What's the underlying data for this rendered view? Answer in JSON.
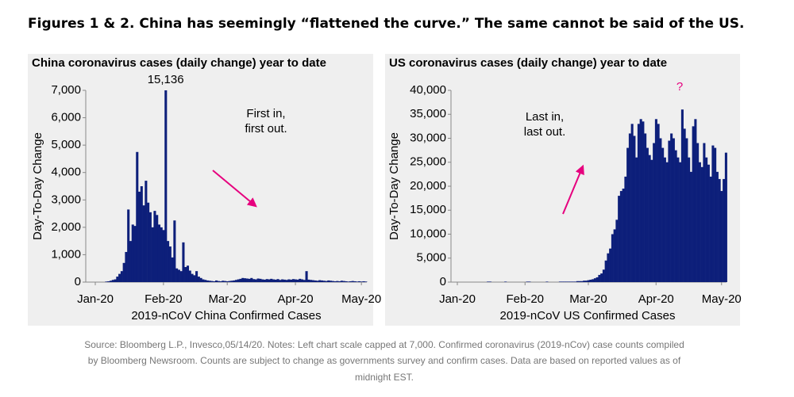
{
  "title": "Figures 1 & 2. China has seemingly “flattened the curve.” The same cannot be said of the US.",
  "source": [
    "Source: Bloomberg L.P., Invesco,05/14/20. Notes: Left chart scale capped at 7,000. Confirmed coronavirus (2019-nCov) case counts compiled",
    "by Bloomberg Newsroom. Counts are subject to change as governments survey and confirm cases. Data are based on reported values as of",
    "midnight EST."
  ],
  "chart_data": [
    {
      "type": "bar",
      "title": "China coronavirus cases (daily change) year to date",
      "y_label": "Day-To-Day Change",
      "x_label": "2019-nCoV China Confirmed Cases",
      "color": "#0d1f7a",
      "annotations": [
        {
          "lines": [
            "First in,",
            "first out."
          ]
        }
      ],
      "categories": [
        "Jan-20",
        null,
        null,
        null,
        null,
        null,
        null,
        null,
        null,
        null,
        null,
        null,
        null,
        null,
        null,
        null,
        null,
        null,
        null,
        null,
        null,
        null,
        null,
        null,
        null,
        null,
        null,
        null,
        null,
        null,
        null,
        "Feb-20",
        null,
        null,
        null,
        null,
        null,
        null,
        null,
        null,
        null,
        null,
        null,
        null,
        null,
        null,
        null,
        null,
        null,
        null,
        null,
        null,
        null,
        null,
        null,
        null,
        null,
        null,
        null,
        null,
        "Mar-20",
        null,
        null,
        null,
        null,
        null,
        null,
        null,
        null,
        null,
        null,
        null,
        null,
        null,
        null,
        null,
        null,
        null,
        null,
        null,
        null,
        null,
        null,
        null,
        null,
        null,
        null,
        null,
        null,
        null,
        null,
        "Apr-20",
        null,
        null,
        null,
        null,
        null,
        null,
        null,
        null,
        null,
        null,
        null,
        null,
        null,
        null,
        null,
        null,
        null,
        null,
        null,
        null,
        null,
        null,
        null,
        null,
        null,
        null,
        null,
        null,
        null,
        "May-20",
        null,
        null
      ],
      "values": [
        0,
        0,
        0,
        0,
        0,
        20,
        30,
        50,
        80,
        100,
        200,
        300,
        400,
        700,
        1100,
        2650,
        1500,
        2100,
        2050,
        4750,
        3300,
        3500,
        2800,
        3700,
        2900,
        2550,
        2000,
        2600,
        2450,
        2100,
        2000,
        1900,
        15136,
        1500,
        1300,
        900,
        2250,
        500,
        450,
        400,
        1450,
        550,
        600,
        420,
        300,
        250,
        400,
        200,
        150,
        100,
        80,
        60,
        50,
        40,
        30,
        60,
        40,
        30,
        50,
        40,
        30,
        40,
        50,
        60,
        80,
        100,
        120,
        150,
        140,
        130,
        120,
        150,
        110,
        100,
        130,
        120,
        100,
        90,
        110,
        100,
        120,
        100,
        90,
        110,
        80,
        100,
        90,
        80,
        100,
        90,
        110,
        100,
        90,
        120,
        100,
        80,
        400,
        90,
        80,
        70,
        60,
        50,
        70,
        60,
        50,
        40,
        60,
        50,
        40,
        30,
        40,
        30,
        50,
        40,
        30,
        20,
        30,
        40,
        30,
        20,
        30,
        20,
        30,
        20
      ],
      "value_labels": [
        null,
        null,
        null,
        null,
        null,
        null,
        null,
        null,
        null,
        null,
        null,
        null,
        null,
        null,
        null,
        null,
        null,
        null,
        null,
        null,
        null,
        null,
        null,
        null,
        null,
        null,
        null,
        null,
        null,
        null,
        null,
        null,
        "15,136",
        null,
        null,
        null,
        null,
        null,
        null,
        null,
        null,
        null,
        null,
        null,
        null,
        null,
        null,
        null,
        null,
        null,
        null,
        null,
        null,
        null,
        null,
        null,
        null,
        null,
        null,
        null,
        null,
        null,
        null,
        null,
        null,
        null,
        null,
        null,
        null,
        null,
        null,
        null,
        null,
        null,
        null,
        null,
        null,
        null,
        null,
        null,
        null,
        null,
        null,
        null,
        null,
        null,
        null,
        null,
        null,
        null,
        null,
        null,
        null,
        null,
        null,
        null,
        null,
        null,
        null,
        null,
        null,
        null,
        null,
        null,
        null,
        null,
        null,
        null,
        null,
        null,
        null,
        null,
        null,
        null,
        null,
        null,
        null,
        null,
        null,
        null,
        null,
        null,
        null,
        null
      ],
      "ylim": [
        0,
        7000
      ],
      "yticks": [
        0,
        {
          "value": 1000,
          "label": "1,000"
        },
        {
          "value": 2000,
          "label": "2,000"
        },
        {
          "value": 3000,
          "label": "3,000"
        },
        {
          "value": 4000,
          "label": "4,000"
        },
        {
          "value": 5000,
          "label": "5,000"
        },
        {
          "value": 6000,
          "label": "6,000"
        },
        {
          "value": 7000,
          "label": "7,000"
        }
      ]
    },
    {
      "type": "bar",
      "title": "US coronavirus cases (daily change) year to date",
      "y_label": "Day-To-Day Change",
      "x_label": "2019-nCoV US Confirmed Cases",
      "color": "#0d1f7a",
      "annotations": [
        {
          "lines": [
            "Last in,",
            "last out."
          ]
        },
        {
          "lines": [
            "?"
          ]
        }
      ],
      "categories": [
        "Jan-20",
        null,
        null,
        null,
        null,
        null,
        null,
        null,
        null,
        null,
        null,
        null,
        null,
        null,
        null,
        null,
        null,
        null,
        null,
        null,
        null,
        null,
        null,
        null,
        null,
        null,
        null,
        null,
        null,
        null,
        null,
        "Feb-20",
        null,
        null,
        null,
        null,
        null,
        null,
        null,
        null,
        null,
        null,
        null,
        null,
        null,
        null,
        null,
        null,
        null,
        null,
        null,
        null,
        null,
        null,
        null,
        null,
        null,
        null,
        null,
        null,
        "Mar-20",
        null,
        null,
        null,
        null,
        null,
        null,
        null,
        null,
        null,
        null,
        null,
        null,
        null,
        null,
        null,
        null,
        null,
        null,
        null,
        null,
        null,
        null,
        null,
        null,
        null,
        null,
        null,
        null,
        null,
        null,
        "Apr-20",
        null,
        null,
        null,
        null,
        null,
        null,
        null,
        null,
        null,
        null,
        null,
        null,
        null,
        null,
        null,
        null,
        null,
        null,
        null,
        null,
        null,
        null,
        null,
        null,
        null,
        null,
        null,
        null,
        null,
        "May-20",
        null,
        null
      ],
      "values": [
        0,
        0,
        0,
        0,
        0,
        0,
        0,
        0,
        0,
        0,
        0,
        0,
        0,
        0,
        100,
        100,
        0,
        0,
        0,
        0,
        0,
        0,
        100,
        0,
        0,
        0,
        0,
        0,
        0,
        0,
        0,
        0,
        100,
        100,
        0,
        0,
        0,
        0,
        0,
        0,
        0,
        100,
        0,
        0,
        0,
        0,
        0,
        100,
        100,
        100,
        100,
        100,
        100,
        100,
        100,
        200,
        200,
        200,
        300,
        300,
        400,
        500,
        600,
        800,
        1000,
        1500,
        1800,
        2600,
        4500,
        6000,
        7000,
        10000,
        11000,
        13000,
        18000,
        19000,
        19500,
        22000,
        28000,
        31000,
        33000,
        30500,
        26000,
        33000,
        34000,
        33500,
        31000,
        28000,
        26500,
        25500,
        29000,
        34000,
        33000,
        30000,
        28000,
        26000,
        25000,
        29500,
        31000,
        30000,
        27500,
        26000,
        25000,
        36000,
        32000,
        30000,
        26000,
        23000,
        32500,
        34000,
        29000,
        25000,
        24000,
        29000,
        26000,
        24500,
        22000,
        28500,
        28000,
        23000,
        21500,
        19000,
        21500,
        27000
      ],
      "ylim": [
        0,
        40000
      ],
      "yticks": [
        0,
        {
          "value": 5000,
          "label": "5,000"
        },
        {
          "value": 10000,
          "label": "10,000"
        },
        {
          "value": 15000,
          "label": "15,000"
        },
        {
          "value": 20000,
          "label": "20,000"
        },
        {
          "value": 25000,
          "label": "25,000"
        },
        {
          "value": 30000,
          "label": "30,000"
        },
        {
          "value": 35000,
          "label": "35,000"
        },
        {
          "value": 40000,
          "label": "40,000"
        }
      ]
    }
  ]
}
